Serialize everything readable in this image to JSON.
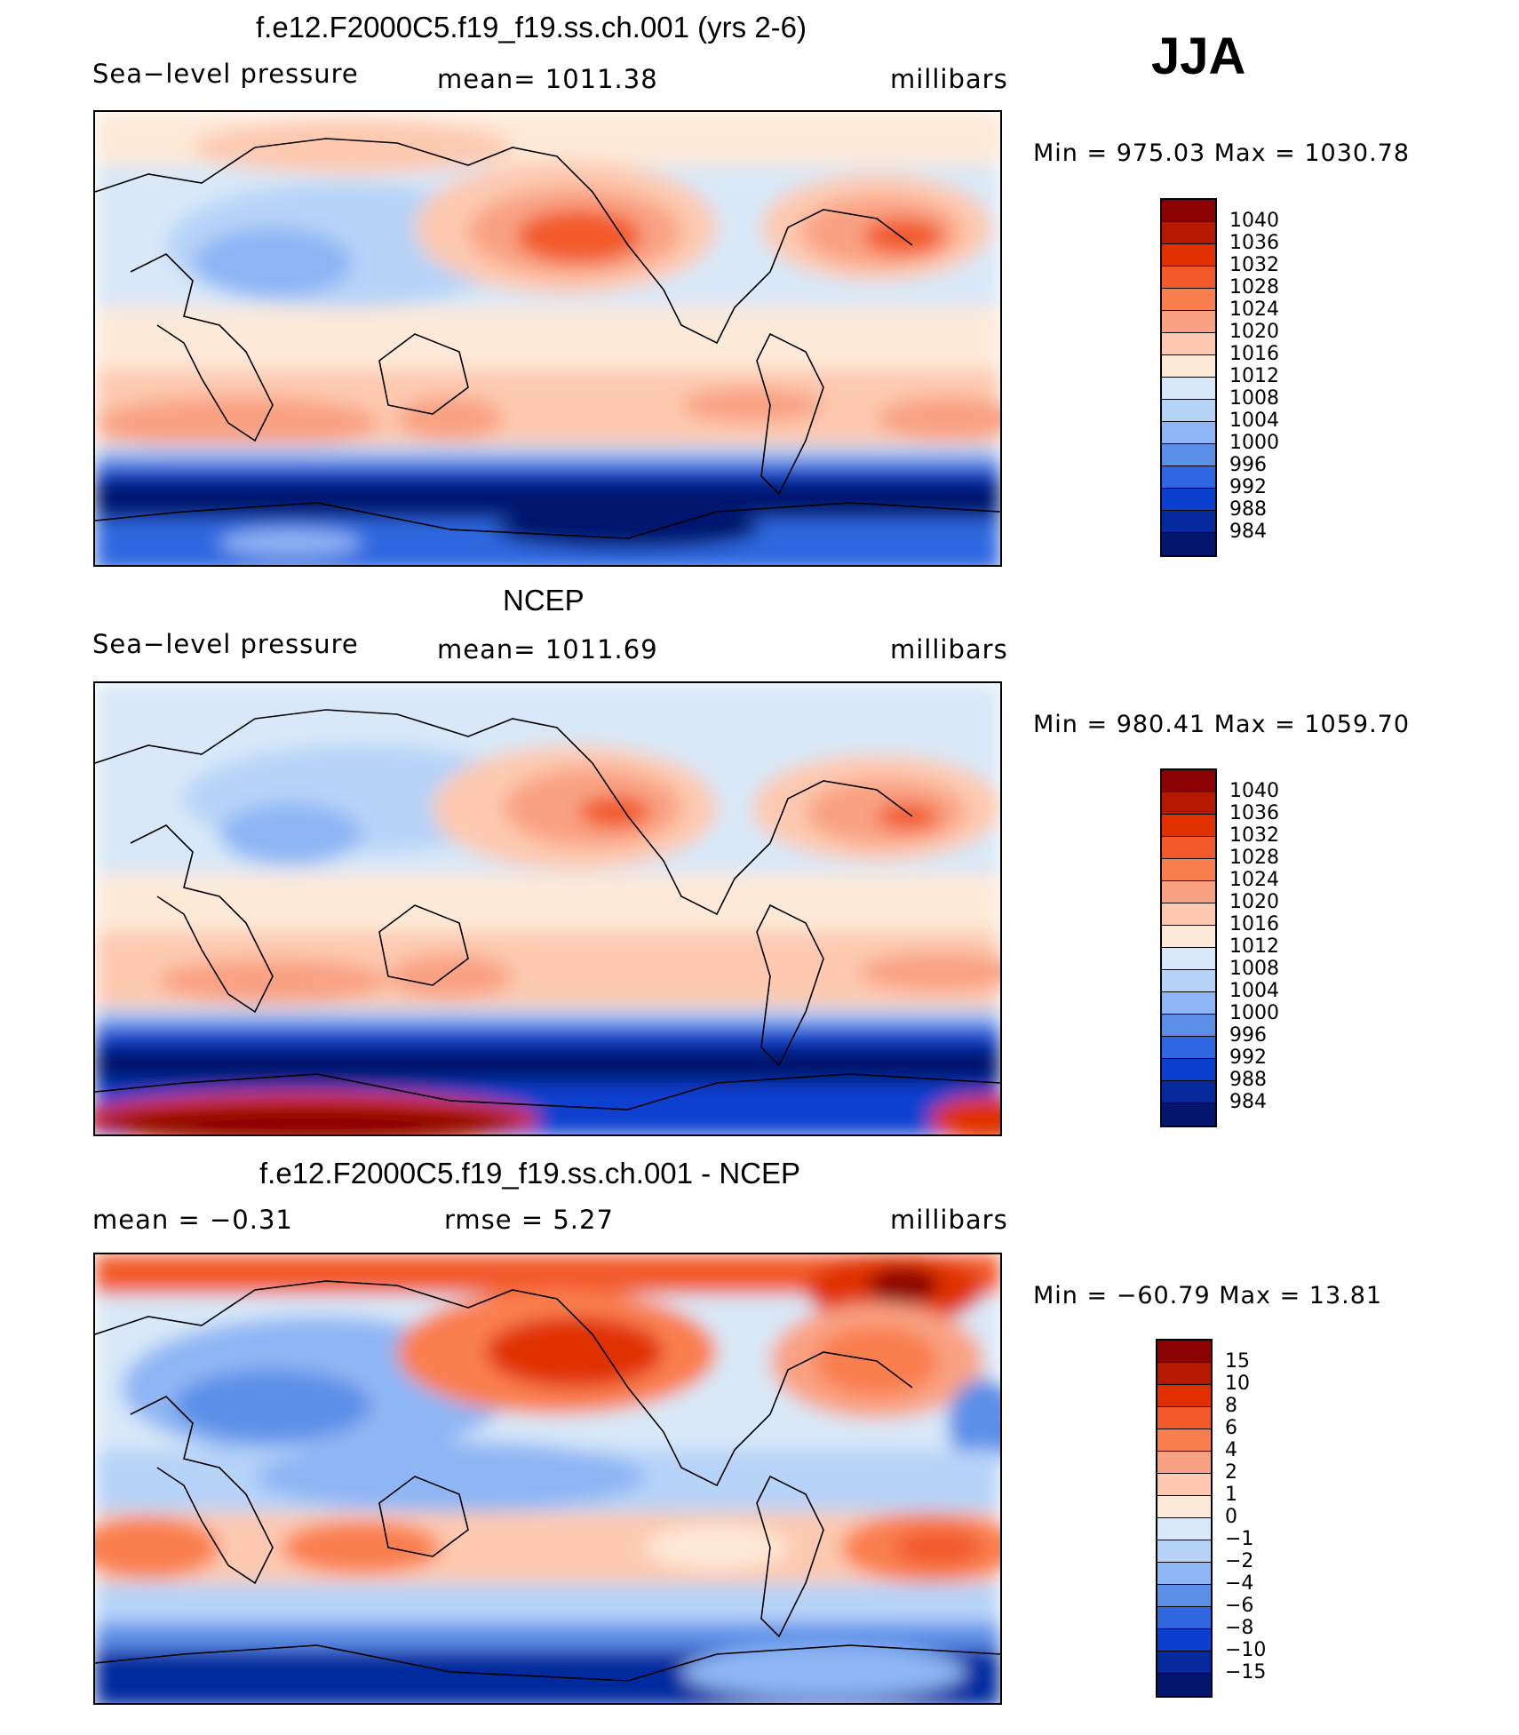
{
  "season": "JJA",
  "chart_data": [
    {
      "type": "heatmap",
      "title": "f.e12.F2000C5.f19_f19.ss.ch.001 (yrs 2-6)",
      "left_label": "Sea−level pressure",
      "center_label": "mean=  1011.38",
      "units": "millibars",
      "min_max": "Min  =  975.03  Max  =  1030.78",
      "legend_levels": [
        "1040",
        "1036",
        "1032",
        "1028",
        "1024",
        "1020",
        "1016",
        "1012",
        "1008",
        "1004",
        "1000",
        "996",
        "992",
        "988",
        "984"
      ],
      "colors": [
        "#8b0000",
        "#b51a00",
        "#e03000",
        "#f25a2a",
        "#fa7f4f",
        "#f9a283",
        "#fdc9b0",
        "#fde9d8",
        "#d8e8f8",
        "#b6d3f8",
        "#8fb6f4",
        "#5b8fe8",
        "#2e67e0",
        "#0a3fcf",
        "#062a9e",
        "#02166e"
      ]
    },
    {
      "type": "heatmap",
      "title": "NCEP",
      "left_label": "Sea−level pressure",
      "center_label": "mean=  1011.69",
      "units": "millibars",
      "min_max": "Min  =  980.41  Max  =  1059.70",
      "legend_levels": [
        "1040",
        "1036",
        "1032",
        "1028",
        "1024",
        "1020",
        "1016",
        "1012",
        "1008",
        "1004",
        "1000",
        "996",
        "992",
        "988",
        "984"
      ],
      "colors": [
        "#8b0000",
        "#b51a00",
        "#e03000",
        "#f25a2a",
        "#fa7f4f",
        "#f9a283",
        "#fdc9b0",
        "#fde9d8",
        "#d8e8f8",
        "#b6d3f8",
        "#8fb6f4",
        "#5b8fe8",
        "#2e67e0",
        "#0a3fcf",
        "#062a9e",
        "#02166e"
      ]
    },
    {
      "type": "heatmap",
      "title": "f.e12.F2000C5.f19_f19.ss.ch.001 - NCEP",
      "left_label": "mean  =    −0.31",
      "center_label": "rmse  =     5.27",
      "units": "millibars",
      "min_max": "Min  =  −60.79  Max  =    13.81",
      "legend_levels": [
        "15",
        "10",
        "8",
        "6",
        "4",
        "2",
        "1",
        "0",
        "−1",
        "−2",
        "−4",
        "−6",
        "−8",
        "−10",
        "−15"
      ],
      "colors": [
        "#8b0000",
        "#b51a00",
        "#e03000",
        "#f25a2a",
        "#fa7f4f",
        "#f9a283",
        "#fdc9b0",
        "#fde9d8",
        "#d8e8f8",
        "#b6d3f8",
        "#8fb6f4",
        "#5b8fe8",
        "#2e67e0",
        "#0a3fcf",
        "#062a9e",
        "#02166e"
      ]
    }
  ]
}
